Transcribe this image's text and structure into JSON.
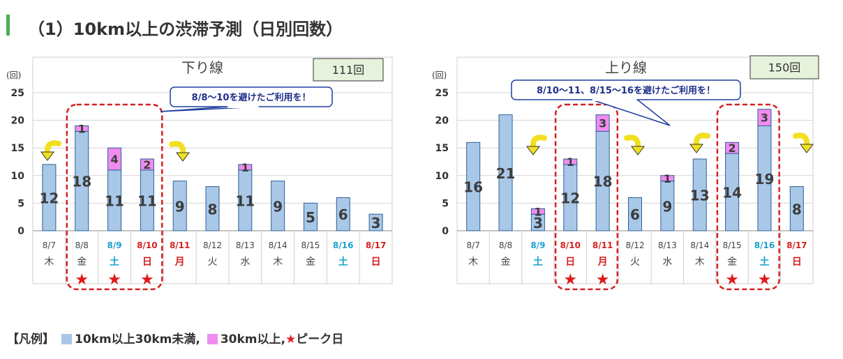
{
  "heading": "（1）10km以上の渋滞予測（日別回数）",
  "legend": {
    "prefix": "【凡例】",
    "item1": "10km以上30km未満",
    "item2": "30km以上",
    "item3": "ピーク日",
    "comma": ",",
    "star": "★",
    "color1": "#a9c8e8",
    "color2": "#f08cf0"
  },
  "colors": {
    "bar_low": "#a9c8e8",
    "bar_high": "#f08cf0",
    "highlight": "#d42020",
    "saturday": "#1aa0d0",
    "holiday": "#d42020"
  },
  "chart_data": [
    {
      "type": "bar",
      "stacked": true,
      "title": "下り線",
      "total_label": "111回",
      "ylabel": "(回)",
      "ylim": [
        0,
        25
      ],
      "yticks": [
        0,
        5,
        10,
        15,
        20,
        25
      ],
      "callout": "8/8～10を避けたご利用を！",
      "categories": [
        "8/7",
        "8/8",
        "8/9",
        "8/10",
        "8/11",
        "8/12",
        "8/13",
        "8/14",
        "8/15",
        "8/16",
        "8/17"
      ],
      "weekdays": [
        "木",
        "金",
        "土",
        "日",
        "月",
        "火",
        "水",
        "木",
        "金",
        "土",
        "日"
      ],
      "day_type": [
        "w",
        "w",
        "sat",
        "hol",
        "hol",
        "w",
        "w",
        "w",
        "w",
        "sat",
        "hol"
      ],
      "peak_days": [
        "8/8",
        "8/9",
        "8/10"
      ],
      "series": [
        {
          "name": "10km以上30km未満",
          "values": [
            12,
            18,
            11,
            11,
            9,
            8,
            11,
            9,
            5,
            6,
            3
          ]
        },
        {
          "name": "30km以上",
          "values": [
            0,
            1,
            4,
            2,
            0,
            0,
            1,
            0,
            0,
            0,
            0
          ]
        }
      ]
    },
    {
      "type": "bar",
      "stacked": true,
      "title": "上り線",
      "total_label": "150回",
      "ylabel": "(回)",
      "ylim": [
        0,
        25
      ],
      "yticks": [
        0,
        5,
        10,
        15,
        20,
        25
      ],
      "callout": "8/10～11、8/15～16を避けたご利用を！",
      "categories": [
        "8/7",
        "8/8",
        "8/9",
        "8/10",
        "8/11",
        "8/12",
        "8/13",
        "8/14",
        "8/15",
        "8/16",
        "8/17"
      ],
      "weekdays": [
        "木",
        "金",
        "土",
        "日",
        "月",
        "火",
        "水",
        "木",
        "金",
        "土",
        "日"
      ],
      "day_type": [
        "w",
        "w",
        "sat",
        "hol",
        "hol",
        "w",
        "w",
        "w",
        "w",
        "sat",
        "hol"
      ],
      "peak_days": [
        "8/10",
        "8/11",
        "8/15",
        "8/16"
      ],
      "series": [
        {
          "name": "10km以上30km未満",
          "values": [
            16,
            21,
            3,
            12,
            18,
            6,
            9,
            13,
            14,
            19,
            8
          ]
        },
        {
          "name": "30km以上",
          "values": [
            0,
            0,
            1,
            1,
            3,
            0,
            1,
            0,
            2,
            3,
            0
          ]
        }
      ]
    }
  ]
}
